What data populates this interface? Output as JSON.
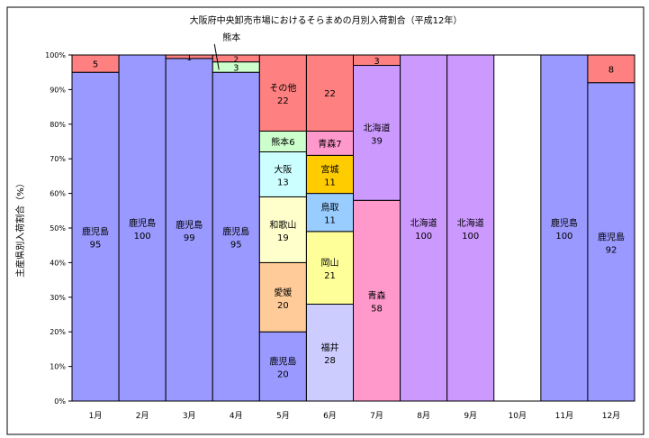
{
  "chart_data": {
    "type": "bar",
    "stacked": true,
    "title": "大阪府中央卸売市場におけるそらまめの月別入荷割合（平成12年）",
    "xlabel": "",
    "ylabel": "主産県別入荷割合（%）",
    "ylim": [
      0,
      100
    ],
    "yticks": [
      "0%",
      "10%",
      "20%",
      "30%",
      "40%",
      "50%",
      "60%",
      "70%",
      "80%",
      "90%",
      "100%"
    ],
    "grid": false,
    "categories": [
      "1月",
      "2月",
      "3月",
      "4月",
      "5月",
      "6月",
      "7月",
      "8月",
      "9月",
      "10月",
      "11月",
      "12月"
    ],
    "stacks": [
      [
        {
          "name": "鹿児島",
          "value": 95,
          "color": "#9999FF"
        },
        {
          "name": "",
          "value": 5,
          "color": "#FF8080"
        }
      ],
      [
        {
          "name": "鹿児島",
          "value": 100,
          "color": "#9999FF"
        }
      ],
      [
        {
          "name": "鹿児島",
          "value": 99,
          "color": "#9999FF"
        },
        {
          "name": "",
          "value": 1,
          "color": "#FF8080"
        }
      ],
      [
        {
          "name": "鹿児島",
          "value": 95,
          "color": "#9999FF"
        },
        {
          "name": "",
          "value": 3,
          "color": "#CCFFCC"
        },
        {
          "name": "",
          "value": 2,
          "color": "#FF8080"
        }
      ],
      [
        {
          "name": "鹿児島",
          "value": 20,
          "color": "#9999FF"
        },
        {
          "name": "愛媛",
          "value": 20,
          "color": "#FFCC99"
        },
        {
          "name": "和歌山",
          "value": 19,
          "color": "#FFFFCC"
        },
        {
          "name": "大阪",
          "value": 13,
          "color": "#CCFFFF"
        },
        {
          "name": "熊本",
          "value": 6,
          "color": "#CCFFCC",
          "inline": true
        },
        {
          "name": "その他",
          "value": 22,
          "color": "#FF8080"
        }
      ],
      [
        {
          "name": "福井",
          "value": 28,
          "color": "#CCCCFF"
        },
        {
          "name": "岡山",
          "value": 21,
          "color": "#FFFF99"
        },
        {
          "name": "鳥取",
          "value": 11,
          "color": "#99CCFF"
        },
        {
          "name": "宮城",
          "value": 11,
          "color": "#FFCC00"
        },
        {
          "name": "青森",
          "value": 7,
          "color": "#FF99CC",
          "inline": true
        },
        {
          "name": "",
          "value": 22,
          "color": "#FF8080"
        }
      ],
      [
        {
          "name": "青森",
          "value": 58,
          "color": "#FF99CC"
        },
        {
          "name": "北海道",
          "value": 39,
          "color": "#CC99FF"
        },
        {
          "name": "",
          "value": 3,
          "color": "#FF8080"
        }
      ],
      [
        {
          "name": "北海道",
          "value": 100,
          "color": "#CC99FF"
        }
      ],
      [
        {
          "name": "北海道",
          "value": 100,
          "color": "#CC99FF"
        }
      ],
      [],
      [
        {
          "name": "鹿児島",
          "value": 100,
          "color": "#9999FF"
        }
      ],
      [
        {
          "name": "鹿児島",
          "value": 92,
          "color": "#9999FF"
        },
        {
          "name": "",
          "value": 8,
          "color": "#FF8080"
        }
      ]
    ],
    "annotations": [
      {
        "text": "熊本",
        "category": "4月"
      }
    ]
  }
}
